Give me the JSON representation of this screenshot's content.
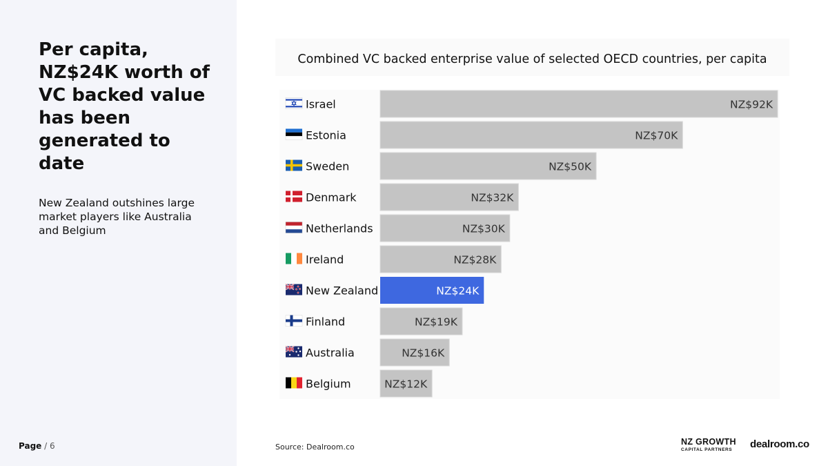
{
  "headline": "Per capita, NZ$24K worth of VC backed value has been generated to date",
  "subtext": "New Zealand outshines large market players like Australia and Belgium",
  "footer": {
    "page_label": "Page",
    "page_separator": " / ",
    "page_number": "6",
    "source": "Source:  Dealroom.co",
    "logo_nzgcp_line1": "NZ GROWTH",
    "logo_nzgcp_line2": "CAPITAL PARTNERS",
    "logo_dealroom": "dealroom.co"
  },
  "colors": {
    "bar_default": "#c4c4c4",
    "bar_highlight": "#3e68e0",
    "label_default": "#333333",
    "label_highlight": "#ffffff",
    "left_panel_bg": "#f4f5fa"
  },
  "chart_data": {
    "type": "bar",
    "orientation": "horizontal",
    "title": "Combined VC backed enterprise value of selected OECD countries, per capita",
    "xlabel": "",
    "ylabel": "",
    "unit": "NZ$ thousands",
    "xlim": [
      0,
      92
    ],
    "grid": false,
    "legend": "none",
    "categories": [
      "Israel",
      "Estonia",
      "Sweden",
      "Denmark",
      "Netherlands",
      "Ireland",
      "New Zealand",
      "Finland",
      "Australia",
      "Belgium"
    ],
    "values": [
      92,
      70,
      50,
      32,
      30,
      28,
      24,
      19,
      16,
      12
    ],
    "value_labels": [
      "NZ$92K",
      "NZ$70K",
      "NZ$50K",
      "NZ$32K",
      "NZ$30K",
      "NZ$28K",
      "NZ$24K",
      "NZ$19K",
      "NZ$16K",
      "NZ$12K"
    ],
    "flag_icons": [
      "israel-flag-icon",
      "estonia-flag-icon",
      "sweden-flag-icon",
      "denmark-flag-icon",
      "netherlands-flag-icon",
      "ireland-flag-icon",
      "new-zealand-flag-icon",
      "finland-flag-icon",
      "australia-flag-icon",
      "belgium-flag-icon"
    ],
    "highlight": "New Zealand"
  }
}
